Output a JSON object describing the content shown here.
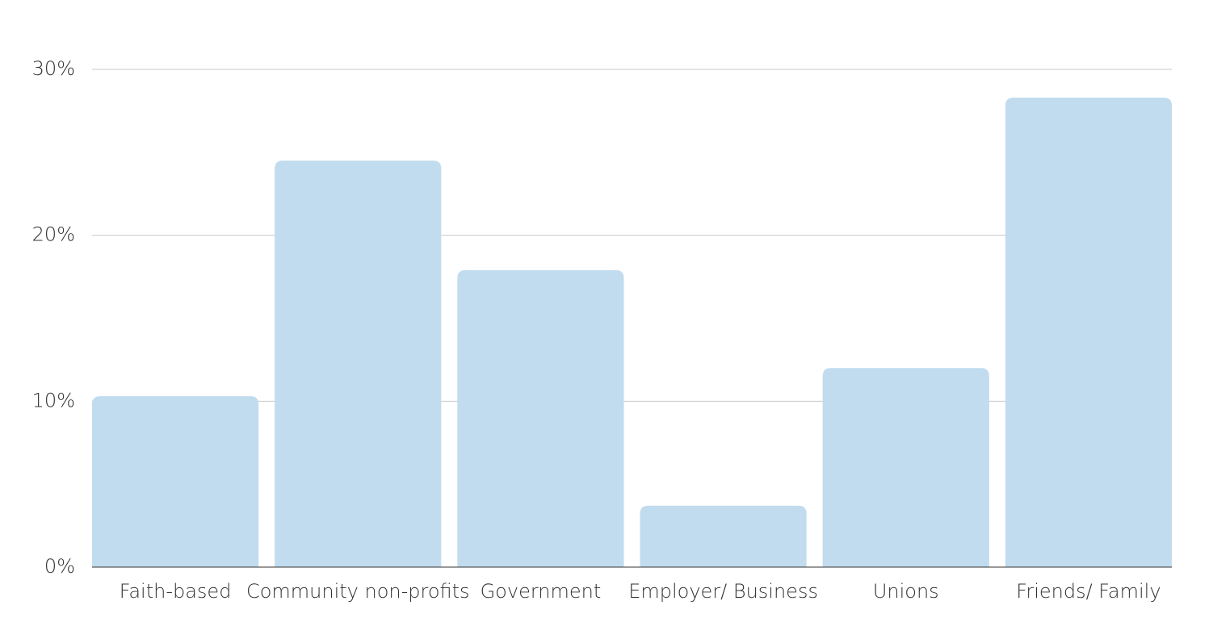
{
  "chart_data": {
    "type": "bar",
    "categories": [
      "Faith-based",
      "Community non-profits",
      "Government",
      "Employer/ Business",
      "Unions",
      "Friends/ Family"
    ],
    "values": [
      10.3,
      24.5,
      17.9,
      3.7,
      12.0,
      28.3
    ],
    "color": "#c1dcee",
    "ylim": [
      0,
      30
    ],
    "yticks": [
      {
        "value": 0,
        "label": "0%"
      },
      {
        "value": 10,
        "label": "10%"
      },
      {
        "value": 20,
        "label": "20%"
      },
      {
        "value": 30,
        "label": "30%"
      }
    ],
    "grid": true
  }
}
